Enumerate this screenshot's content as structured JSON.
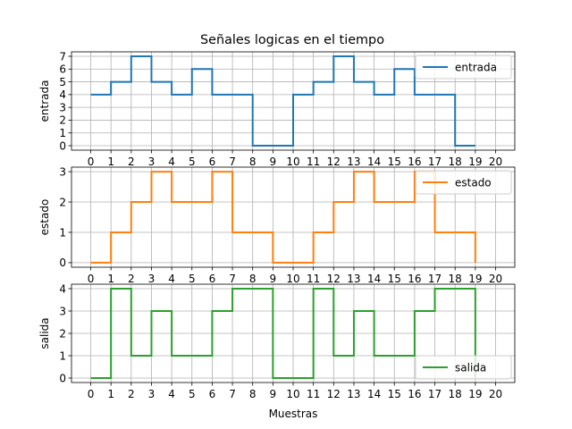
{
  "title": "Señales logicas en el tiempo",
  "chart_data": [
    {
      "type": "line",
      "step": "post",
      "title": "Señales logicas en el tiempo",
      "xlabel": "",
      "ylabel": "entrada",
      "x": [
        0,
        1,
        2,
        3,
        4,
        5,
        6,
        7,
        8,
        9,
        10,
        11,
        12,
        13,
        14,
        15,
        16,
        17,
        18,
        19
      ],
      "series": [
        {
          "name": "entrada",
          "color": "#1f77b4",
          "values": [
            4,
            5,
            7,
            5,
            4,
            6,
            4,
            4,
            0,
            0,
            4,
            5,
            7,
            5,
            4,
            6,
            4,
            4,
            0,
            0
          ]
        }
      ],
      "xticks": [
        0,
        1,
        2,
        3,
        4,
        5,
        6,
        7,
        8,
        9,
        10,
        11,
        12,
        13,
        14,
        15,
        16,
        17,
        18,
        19,
        20
      ],
      "yticks": [
        0,
        1,
        2,
        3,
        4,
        5,
        6,
        7
      ],
      "xlim": [
        -0.95,
        20.95
      ],
      "ylim": [
        -0.35,
        7.35
      ],
      "grid": true,
      "legend": "upper right"
    },
    {
      "type": "line",
      "step": "post",
      "title": "",
      "xlabel": "",
      "ylabel": "estado",
      "x": [
        0,
        1,
        2,
        3,
        4,
        5,
        6,
        7,
        8,
        9,
        10,
        11,
        12,
        13,
        14,
        15,
        16,
        17,
        18,
        19
      ],
      "series": [
        {
          "name": "estado",
          "color": "#ff7f0e",
          "values": [
            0,
            1,
            2,
            3,
            2,
            2,
            3,
            1,
            1,
            0,
            0,
            1,
            2,
            3,
            2,
            2,
            3,
            1,
            1,
            0
          ]
        }
      ],
      "xticks": [
        0,
        1,
        2,
        3,
        4,
        5,
        6,
        7,
        8,
        9,
        10,
        11,
        12,
        13,
        14,
        15,
        16,
        17,
        18,
        19,
        20
      ],
      "yticks": [
        0,
        1,
        2,
        3
      ],
      "xlim": [
        -0.95,
        20.95
      ],
      "ylim": [
        -0.15,
        3.15
      ],
      "grid": true,
      "legend": "upper right"
    },
    {
      "type": "line",
      "step": "post",
      "title": "",
      "xlabel": "Muestras",
      "ylabel": "salida",
      "x": [
        0,
        1,
        2,
        3,
        4,
        5,
        6,
        7,
        8,
        9,
        10,
        11,
        12,
        13,
        14,
        15,
        16,
        17,
        18,
        19
      ],
      "series": [
        {
          "name": "salida",
          "color": "#2ca02c",
          "values": [
            0,
            4,
            1,
            3,
            1,
            1,
            3,
            4,
            4,
            0,
            0,
            4,
            1,
            3,
            1,
            1,
            3,
            4,
            4,
            0
          ]
        }
      ],
      "xticks": [
        0,
        1,
        2,
        3,
        4,
        5,
        6,
        7,
        8,
        9,
        10,
        11,
        12,
        13,
        14,
        15,
        16,
        17,
        18,
        19,
        20
      ],
      "yticks": [
        0,
        1,
        2,
        3,
        4
      ],
      "xlim": [
        -0.95,
        20.95
      ],
      "ylim": [
        -0.2,
        4.2
      ],
      "grid": true,
      "legend": "lower right"
    }
  ]
}
